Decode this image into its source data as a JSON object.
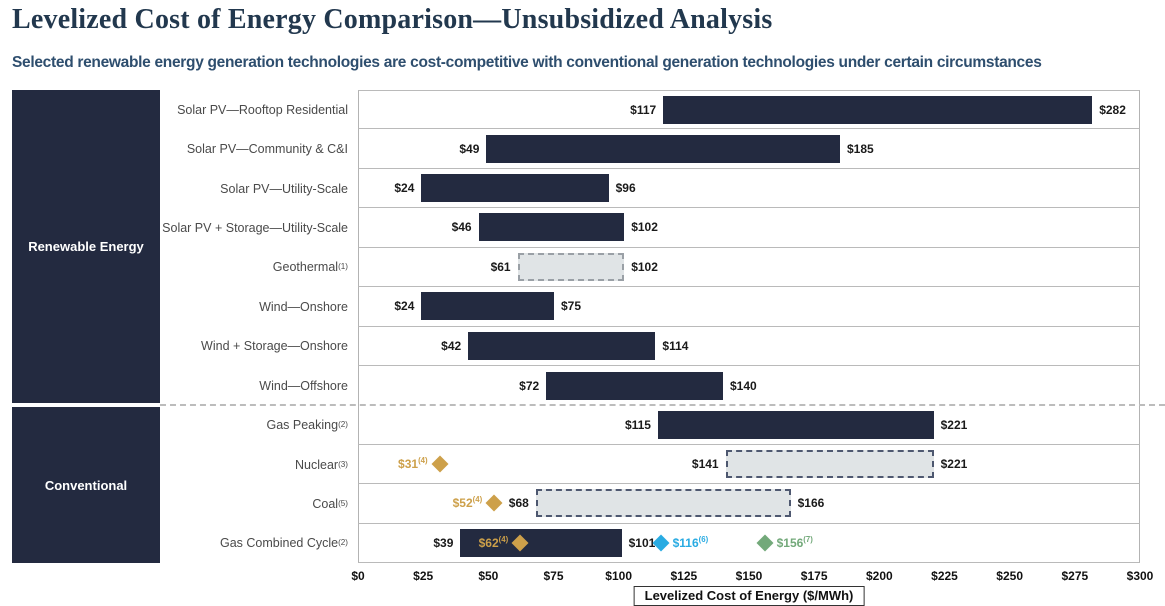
{
  "header": {
    "title": "Levelized Cost of Energy Comparison—Unsubsidized Analysis",
    "subtitle": "Selected renewable energy generation technologies are cost-competitive with conventional generation technologies under certain circumstances"
  },
  "chart_data": {
    "type": "bar",
    "subtype": "horizontal-range-bars",
    "title": "Levelized Cost of Energy Comparison—Unsubsidized Analysis",
    "xlabel": "Levelized Cost of Energy ($/MWh)",
    "xlim": [
      0,
      300
    ],
    "x_ticks": [
      0,
      25,
      50,
      75,
      100,
      125,
      150,
      175,
      200,
      225,
      250,
      275,
      300
    ],
    "x_tick_labels": [
      "$0",
      "$25",
      "$50",
      "$75",
      "$100",
      "$125",
      "$150",
      "$175",
      "$200",
      "$225",
      "$250",
      "$275",
      "$300"
    ],
    "grid": false,
    "legend": "none",
    "groups": [
      {
        "name": "Renewable Energy",
        "row_count": 8
      },
      {
        "name": "Conventional",
        "row_count": 4
      }
    ],
    "colors": {
      "bar_navy": "#232a40",
      "dashed_fill": "#e0e4e6",
      "gold": "#cda04a",
      "cyan": "#29abe2",
      "green": "#73a97a"
    },
    "rows": [
      {
        "group": "Renewable Energy",
        "label": "Solar PV—Rooftop Residential",
        "sup": "",
        "low": 117,
        "high": 282,
        "low_label": "$117",
        "high_label": "$282",
        "bar_style": "solid",
        "markers": []
      },
      {
        "group": "Renewable Energy",
        "label": "Solar PV—Community & C&I",
        "sup": "",
        "low": 49,
        "high": 185,
        "low_label": "$49",
        "high_label": "$185",
        "bar_style": "solid",
        "markers": []
      },
      {
        "group": "Renewable Energy",
        "label": "Solar PV—Utility-Scale",
        "sup": "",
        "low": 24,
        "high": 96,
        "low_label": "$24",
        "high_label": "$96",
        "bar_style": "solid",
        "markers": []
      },
      {
        "group": "Renewable Energy",
        "label": "Solar PV + Storage—Utility-Scale",
        "sup": "",
        "low": 46,
        "high": 102,
        "low_label": "$46",
        "high_label": "$102",
        "bar_style": "solid",
        "markers": []
      },
      {
        "group": "Renewable Energy",
        "label": "Geothermal",
        "sup": "(1)",
        "low": 61,
        "high": 102,
        "low_label": "$61",
        "high_label": "$102",
        "bar_style": "dashed-gray",
        "markers": []
      },
      {
        "group": "Renewable Energy",
        "label": "Wind—Onshore",
        "sup": "",
        "low": 24,
        "high": 75,
        "low_label": "$24",
        "high_label": "$75",
        "bar_style": "solid",
        "markers": []
      },
      {
        "group": "Renewable Energy",
        "label": "Wind + Storage—Onshore",
        "sup": "",
        "low": 42,
        "high": 114,
        "low_label": "$42",
        "high_label": "$114",
        "bar_style": "solid",
        "markers": []
      },
      {
        "group": "Renewable Energy",
        "label": "Wind—Offshore",
        "sup": "",
        "low": 72,
        "high": 140,
        "low_label": "$72",
        "high_label": "$140",
        "bar_style": "solid",
        "markers": []
      },
      {
        "group": "Conventional",
        "label": "Gas Peaking",
        "sup": "(2)",
        "low": 115,
        "high": 221,
        "low_label": "$115",
        "high_label": "$221",
        "bar_style": "solid",
        "markers": []
      },
      {
        "group": "Conventional",
        "label": "Nuclear",
        "sup": "(3)",
        "low": 141,
        "high": 221,
        "low_label": "$141",
        "high_label": "$221",
        "bar_style": "dashed-navy",
        "markers": [
          {
            "value": 31,
            "label": "$31",
            "sup": "(4)",
            "color_key": "gold",
            "label_side": "left"
          }
        ]
      },
      {
        "group": "Conventional",
        "label": "Coal",
        "sup": "(5)",
        "low": 68,
        "high": 166,
        "low_label": "$68",
        "high_label": "$166",
        "bar_style": "dashed-navy",
        "markers": [
          {
            "value": 52,
            "label": "$52",
            "sup": "(4)",
            "color_key": "gold",
            "label_side": "left"
          }
        ]
      },
      {
        "group": "Conventional",
        "label": "Gas Combined Cycle",
        "sup": "(2)",
        "low": 39,
        "high": 101,
        "low_label": "$39",
        "high_label": "$101",
        "bar_style": "solid",
        "markers": [
          {
            "value": 62,
            "label": "$62",
            "sup": "(4)",
            "color_key": "gold",
            "label_side": "left"
          },
          {
            "value": 116,
            "label": "$116",
            "sup": "(6)",
            "color_key": "cyan",
            "label_side": "right"
          },
          {
            "value": 156,
            "label": "$156",
            "sup": "(7)",
            "color_key": "green",
            "label_side": "right"
          }
        ]
      }
    ]
  }
}
